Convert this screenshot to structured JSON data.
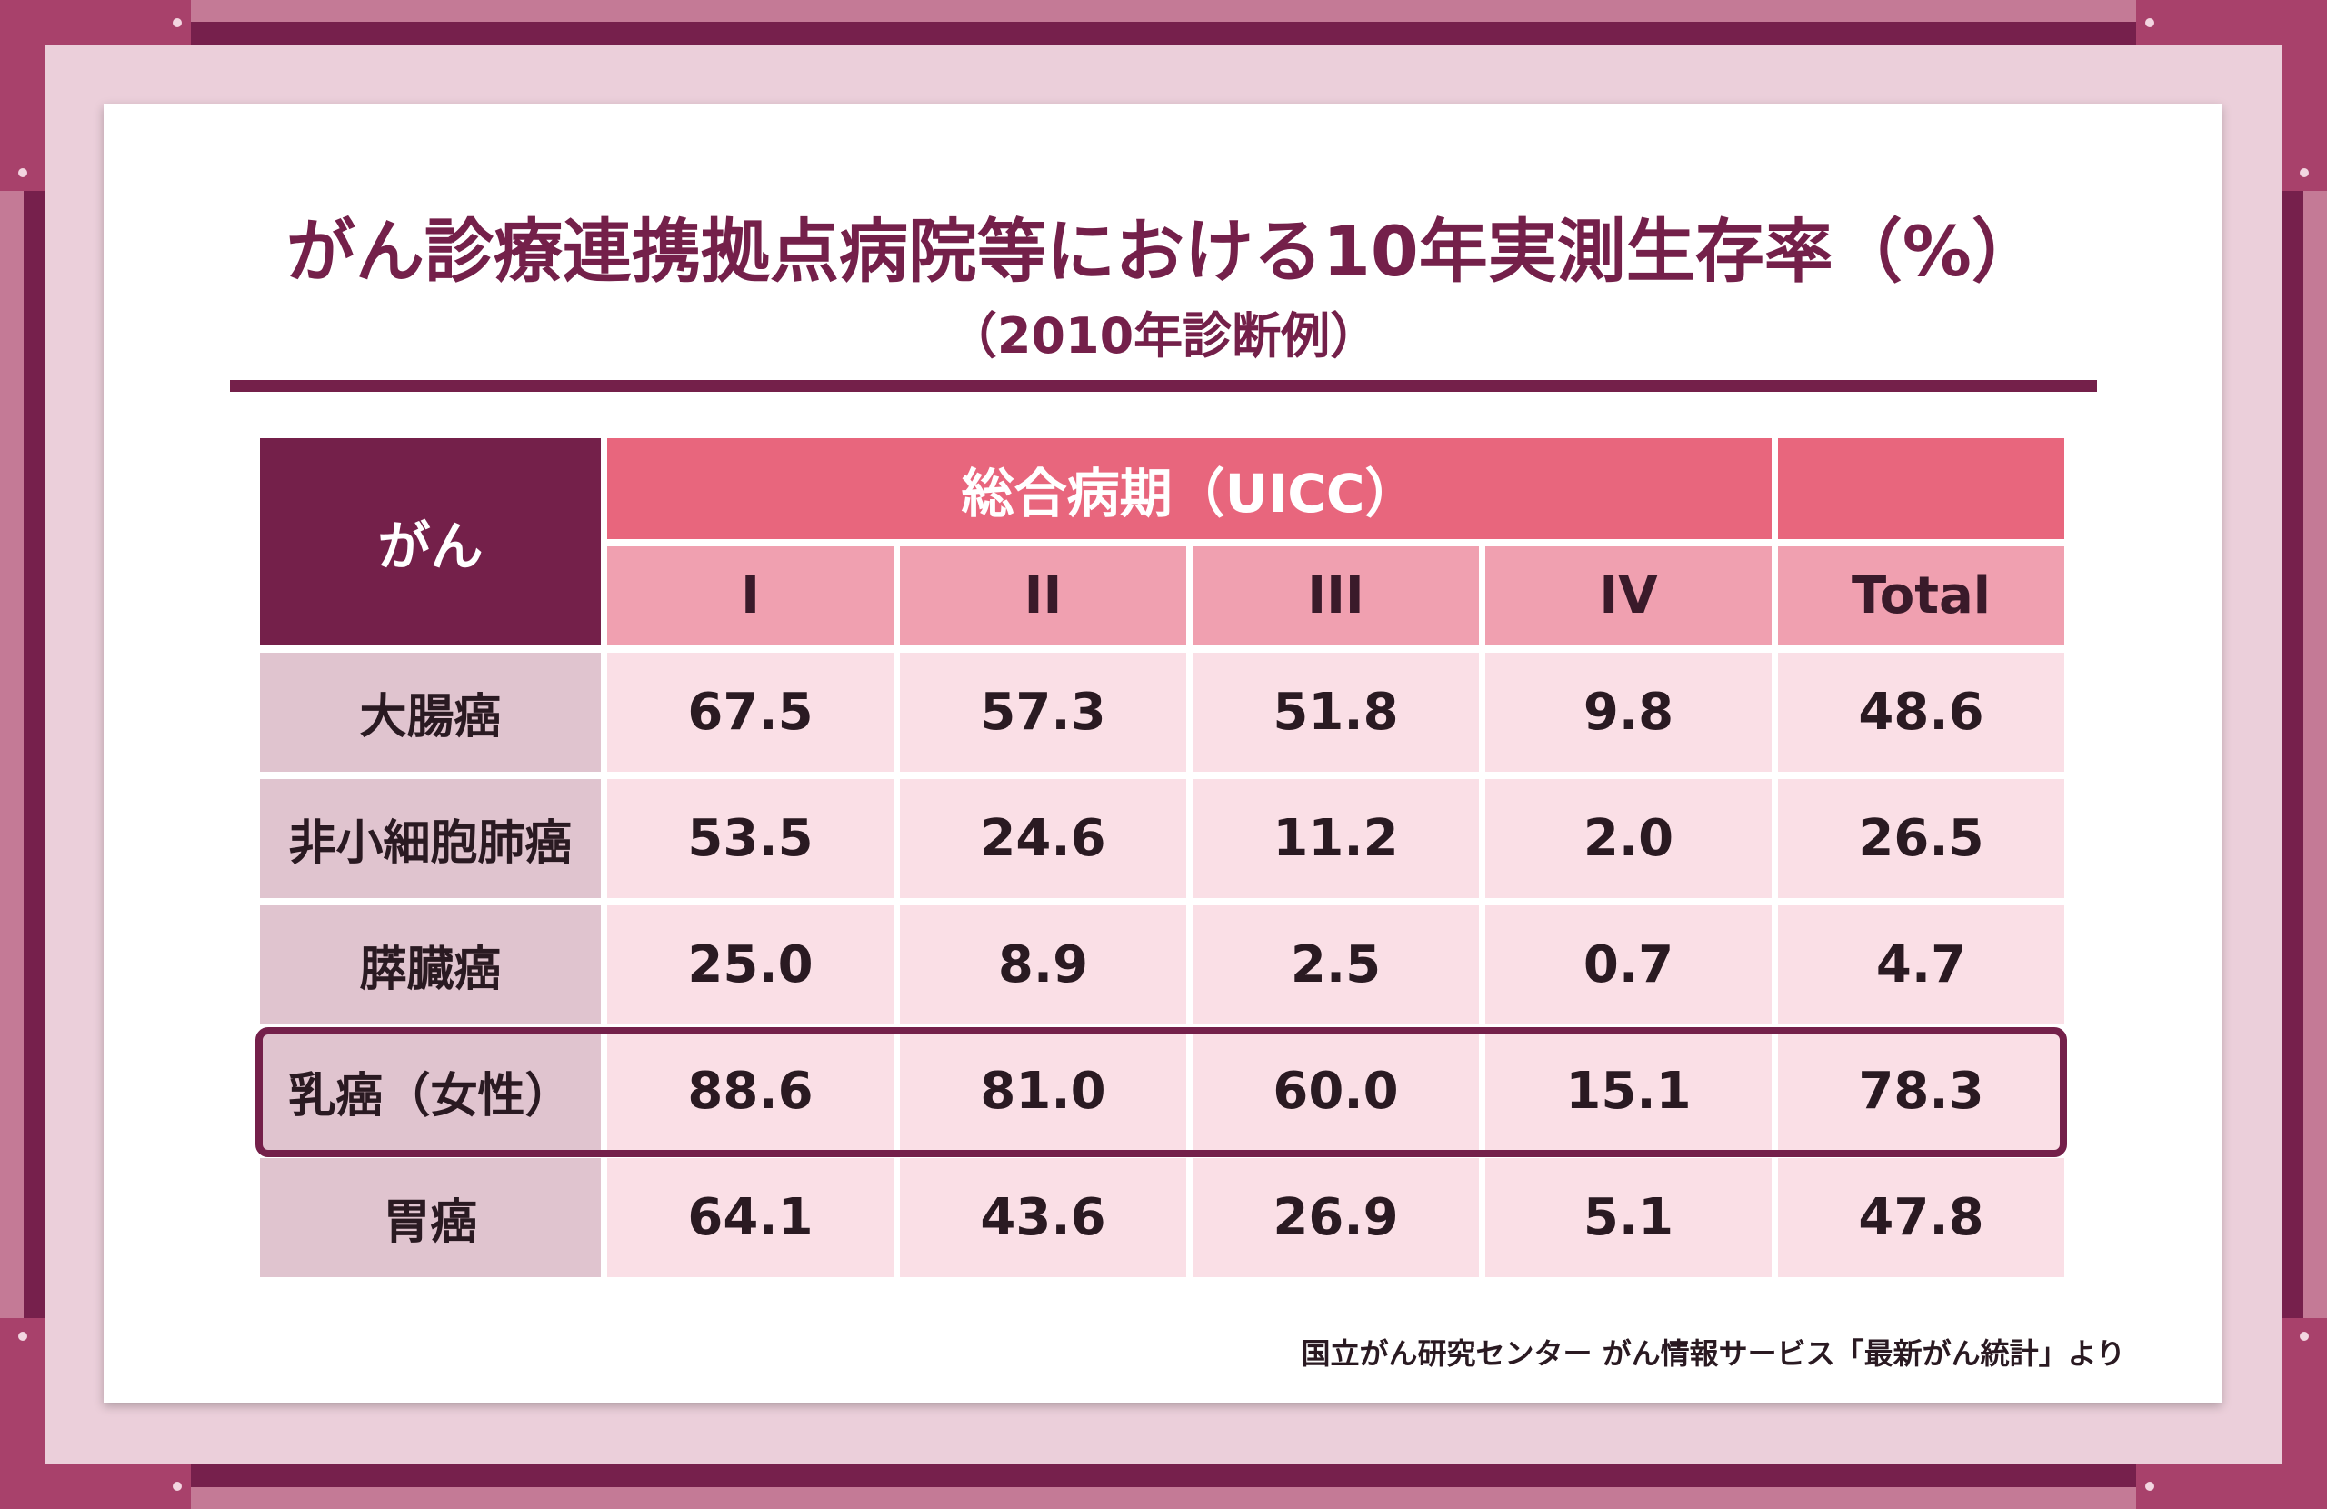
{
  "header": {
    "title": "がん診療連携拠点病院等における10年実測生存率（%）",
    "subtitle": "（2010年診断例）"
  },
  "table": {
    "group_label": "がん",
    "stage_label": "総合病期（UICC）",
    "columns": [
      "I",
      "II",
      "III",
      "IV",
      "Total"
    ],
    "rows": [
      {
        "name": "大腸癌",
        "cells": [
          "67.5",
          "57.3",
          "51.8",
          "9.8",
          "48.6"
        ]
      },
      {
        "name": "非小細胞肺癌",
        "cells": [
          "53.5",
          "24.6",
          "11.2",
          "2.0",
          "26.5"
        ]
      },
      {
        "name": "膵臓癌",
        "cells": [
          "25.0",
          "8.9",
          "2.5",
          "0.7",
          "4.7"
        ]
      },
      {
        "name": "乳癌（女性）",
        "cells": [
          "88.6",
          "81.0",
          "60.0",
          "15.1",
          "78.3"
        ]
      },
      {
        "name": "胃癌",
        "cells": [
          "64.1",
          "43.6",
          "26.9",
          "5.1",
          "47.8"
        ]
      }
    ]
  },
  "footer": {
    "source": "国立がん研究センター がん情報サービス「最新がん統計」より"
  }
}
